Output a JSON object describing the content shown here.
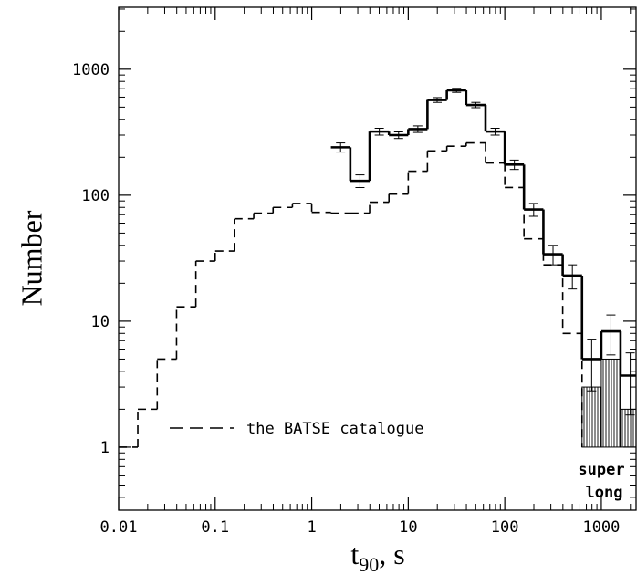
{
  "chart_data": {
    "type": "histogram",
    "xlabel": "t",
    "xlabel_sub": "90",
    "xlabel_rest": ", s",
    "ylabel": "Number",
    "log_x": true,
    "log_y": true,
    "xlim": [
      0.01,
      2290
    ],
    "ylim": [
      0.316,
      3100
    ],
    "xticks": [
      0.01,
      0.1,
      1,
      10,
      100,
      1000
    ],
    "yticks": [
      1,
      10,
      100,
      1000
    ],
    "series": [
      {
        "name": "the BATSE catalogue",
        "style": "dashed",
        "color": "#000000",
        "bins": [
          0.01,
          0.0158,
          0.0251,
          0.0398,
          0.0631,
          0.1,
          0.158,
          0.251,
          0.398,
          0.631,
          1,
          1.58,
          2.51,
          3.98,
          6.31,
          10,
          15.8,
          25.1,
          39.8,
          63.1,
          100,
          158,
          251,
          398,
          631
        ],
        "values": [
          1,
          2,
          5,
          13,
          30,
          36,
          65,
          72,
          80,
          86,
          73,
          72,
          72,
          88,
          102,
          155,
          225,
          245,
          260,
          180,
          115,
          45,
          28,
          8
        ]
      },
      {
        "style": "solid",
        "color": "#000000",
        "bins": [
          1.58,
          2.51,
          3.98,
          6.31,
          10,
          15.8,
          25.1,
          39.8,
          63.1,
          100,
          158,
          251,
          398,
          631,
          1000,
          1580,
          2510
        ],
        "values": [
          240,
          130,
          320,
          300,
          335,
          570,
          680,
          520,
          320,
          175,
          77,
          34,
          23,
          5,
          8.3,
          3.7
        ],
        "errors": [
          20,
          15,
          20,
          18,
          20,
          25,
          25,
          25,
          20,
          15,
          9,
          6,
          5,
          2.2,
          2.9,
          1.9
        ]
      },
      {
        "style": "hatched",
        "color": "#000000",
        "bins": [
          631,
          1000,
          1580,
          2510
        ],
        "values": [
          3,
          5,
          2
        ]
      }
    ],
    "annotations": [
      "super",
      "long"
    ]
  }
}
